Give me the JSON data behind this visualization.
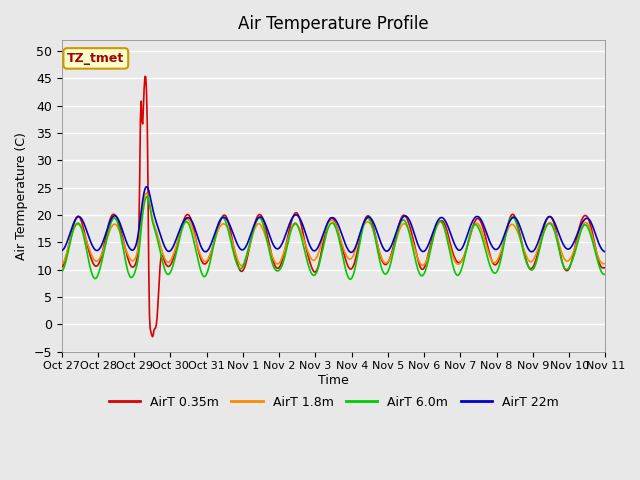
{
  "title": "Air Temperature Profile",
  "xlabel": "Time",
  "ylabel": "Air Termperature (C)",
  "ylim": [
    -5,
    52
  ],
  "yticks": [
    -5,
    0,
    5,
    10,
    15,
    20,
    25,
    30,
    35,
    40,
    45,
    50
  ],
  "background_color": "#e8e8e8",
  "plot_bg_color": "#e8e8e8",
  "grid_color": "white",
  "colors": {
    "AirT 0.35m": "#dd0000",
    "AirT 1.8m": "#ff8800",
    "AirT 6.0m": "#00cc00",
    "AirT 22m": "#0000cc"
  },
  "annotation_text": "TZ_tmet",
  "annotation_bg": "#ffffcc",
  "annotation_border": "#cc9900",
  "x_tick_labels": [
    "Oct 27",
    "Oct 28",
    "Oct 29",
    "Oct 30",
    "Oct 31",
    "Nov 1",
    "Nov 2",
    "Nov 3",
    "Nov 4",
    "Nov 5",
    "Nov 6",
    "Nov 7",
    "Nov 8",
    "Nov 9",
    "Nov 10",
    "Nov 11"
  ],
  "num_days": 15,
  "points_per_day": 48
}
